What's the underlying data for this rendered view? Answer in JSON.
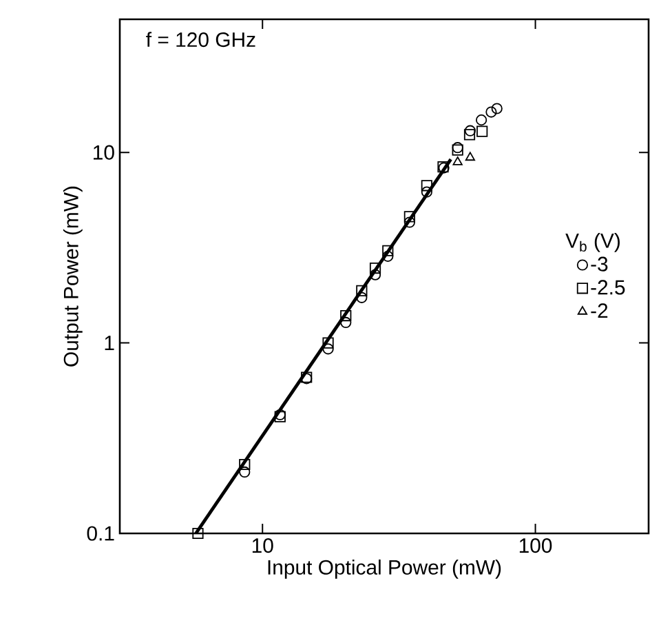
{
  "chart_data": {
    "type": "scatter",
    "xlabel": "Input Optical Power (mW)",
    "ylabel": "Output Power (mW)",
    "legend_title": "V$_{b}$ (V)",
    "annotations": [
      "f = 120 GHz"
    ],
    "log": "xy",
    "xlim": [
      3,
      260
    ],
    "ylim": [
      0.1,
      50
    ],
    "xticks": [
      10,
      100
    ],
    "yticks": [
      0.1,
      1,
      10
    ],
    "legend": "right",
    "grid": false,
    "series": [
      {
        "name": "-3",
        "color": "#000000",
        "marker": "circle",
        "x": [
          8.6,
          11.6,
          14.5,
          17.4,
          20.2,
          23.1,
          25.9,
          28.8,
          34.6,
          40,
          46.2,
          51.9,
          57.7,
          63.4,
          68.9,
          72.3
        ],
        "values": [
          0.21,
          0.42,
          0.65,
          0.93,
          1.28,
          1.73,
          2.28,
          2.85,
          4.3,
          6.2,
          8.3,
          10.6,
          13,
          14.8,
          16.3,
          17
        ]
      },
      {
        "name": "-2.5",
        "color": "#000000",
        "marker": "square",
        "x": [
          5.8,
          8.6,
          11.6,
          14.5,
          17.4,
          20.2,
          23.1,
          25.9,
          28.8,
          34.6,
          40,
          45.9,
          51.9,
          57.4,
          63.8
        ],
        "values": [
          0.1,
          0.23,
          0.41,
          0.66,
          1.0,
          1.39,
          1.88,
          2.47,
          3.05,
          4.6,
          6.7,
          8.4,
          10.3,
          12.4,
          12.9
        ]
      },
      {
        "name": "-2",
        "color": "#000000",
        "marker": "triangle",
        "x": [
          51.9,
          57.7
        ],
        "values": [
          8.9,
          9.4
        ]
      },
      {
        "type": "line",
        "color": "#000000",
        "marker": "none",
        "line_style": "solid",
        "x": [
          5.7,
          49
        ],
        "values": [
          0.1,
          9.2
        ]
      }
    ]
  }
}
